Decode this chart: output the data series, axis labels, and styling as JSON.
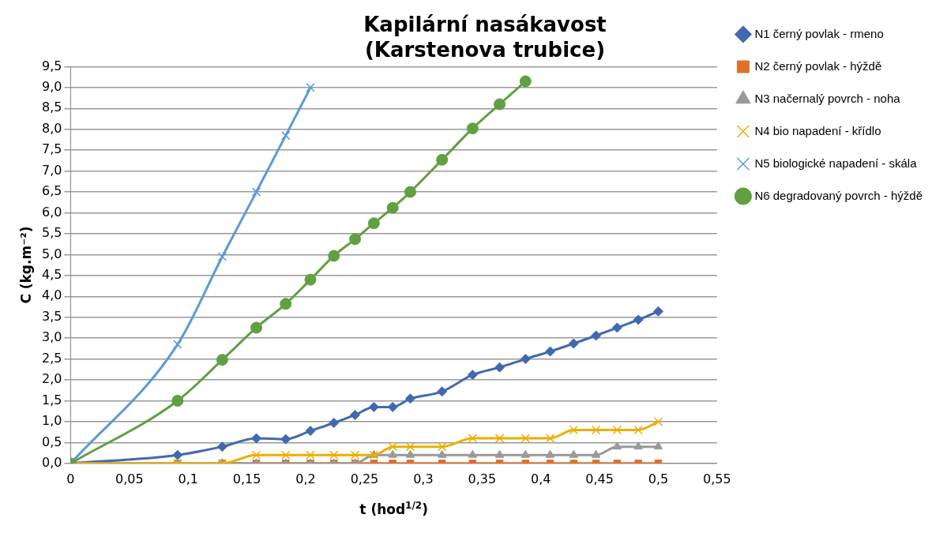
{
  "chart_data": {
    "type": "line",
    "title": [
      "Kapilární nasákavost",
      "(Karstenova trubice)"
    ],
    "xlabel": "t (hod$^{1/2}$)",
    "ylabel": "C (kg.m⁻²)",
    "x": [
      0,
      0.091,
      0.129,
      0.158,
      0.183,
      0.204,
      0.224,
      0.242,
      0.258,
      0.274,
      0.289,
      0.316,
      0.342,
      0.365,
      0.387,
      0.408,
      0.428,
      0.447,
      0.465,
      0.483,
      0.5
    ],
    "series": [
      {
        "name": "N1 černý povlak - rmeno",
        "color": "#4169b0",
        "marker": "diamond",
        "values": [
          0,
          0.2,
          0.4,
          0.6,
          0.58,
          0.78,
          0.97,
          1.16,
          1.35,
          1.35,
          1.55,
          1.72,
          2.12,
          2.3,
          2.5,
          2.68,
          2.87,
          3.06,
          3.25,
          3.44,
          3.64
        ]
      },
      {
        "name": "N2 černý povlak - hýždě",
        "color": "#e07028",
        "marker": "square",
        "values": [
          0,
          0,
          0,
          0,
          0,
          0,
          0,
          0,
          0,
          0,
          0,
          0,
          0,
          0,
          0,
          0,
          0,
          0,
          0,
          0,
          0
        ]
      },
      {
        "name": "N3 načernalý povrch - noha",
        "color": "#999999",
        "marker": "triangle",
        "values": [
          0,
          0,
          0,
          0,
          0,
          0,
          0,
          0,
          0.2,
          0.2,
          0.2,
          0.2,
          0.2,
          0.2,
          0.2,
          0.2,
          0.2,
          0.2,
          0.4,
          0.4,
          0.4
        ]
      },
      {
        "name": "N4 bio napadení - křídlo",
        "color": "#eab000",
        "marker": "cross",
        "values": [
          0,
          0,
          0,
          0.2,
          0.2,
          0.2,
          0.2,
          0.2,
          0.2,
          0.4,
          0.4,
          0.4,
          0.6,
          0.6,
          0.6,
          0.6,
          0.8,
          0.8,
          0.8,
          0.8,
          1.0
        ]
      },
      {
        "name": "N5 biologické napadení - skála",
        "color": "#5b9bd5",
        "marker": "cross",
        "values": [
          0,
          2.85,
          4.95,
          6.5,
          7.85,
          9.0,
          null,
          null,
          null,
          null,
          null,
          null,
          null,
          null,
          null,
          null,
          null,
          null,
          null,
          null,
          null
        ]
      },
      {
        "name": "N6 degradovaný povrch - hýždě",
        "color": "#60a040",
        "marker": "circle",
        "values": [
          0,
          1.5,
          2.48,
          3.25,
          3.82,
          4.4,
          4.97,
          5.37,
          5.75,
          6.12,
          6.5,
          7.27,
          8.02,
          8.6,
          9.15,
          null,
          null,
          null,
          null,
          null,
          null
        ]
      }
    ],
    "xlim": [
      0,
      0.55
    ],
    "xticks": [
      0,
      {
        "value": 0.05,
        "label": "0,05"
      },
      {
        "value": 0.1,
        "label": "0,1"
      },
      {
        "value": 0.15,
        "label": "0,15"
      },
      {
        "value": 0.2,
        "label": "0,2"
      },
      {
        "value": 0.25,
        "label": "0,25"
      },
      {
        "value": 0.3,
        "label": "0,3"
      },
      {
        "value": 0.35,
        "label": "0,35"
      },
      {
        "value": 0.4,
        "label": "0,4"
      },
      {
        "value": 0.45,
        "label": "0,45"
      },
      {
        "value": 0.5,
        "label": "0,5"
      },
      {
        "value": 0.55,
        "label": "0,55"
      }
    ],
    "ylim": [
      0,
      9.5
    ],
    "yticks": [
      {
        "value": 0,
        "label": "0,0"
      },
      {
        "value": 0.5,
        "label": "0,5"
      },
      {
        "value": 1,
        "label": "1,0"
      },
      {
        "value": 1.5,
        "label": "1,5"
      },
      {
        "value": 2,
        "label": "2,0"
      },
      {
        "value": 2.5,
        "label": "2,5"
      },
      {
        "value": 3,
        "label": "3,0"
      },
      {
        "value": 3.5,
        "label": "3,5"
      },
      {
        "value": 4,
        "label": "4,0"
      },
      {
        "value": 4.5,
        "label": "4,5"
      },
      {
        "value": 5,
        "label": "5,0"
      },
      {
        "value": 5.5,
        "label": "5,5"
      },
      {
        "value": 6,
        "label": "6,0"
      },
      {
        "value": 6.5,
        "label": "6,5"
      },
      {
        "value": 7,
        "label": "7,0"
      },
      {
        "value": 7.5,
        "label": "7,5"
      },
      {
        "value": 8,
        "label": "8,0"
      },
      {
        "value": 8.5,
        "label": "8,5"
      },
      {
        "value": 9,
        "label": "9,0"
      },
      {
        "value": 9.5,
        "label": "9,5"
      }
    ],
    "grid": "y",
    "legend": "right"
  }
}
